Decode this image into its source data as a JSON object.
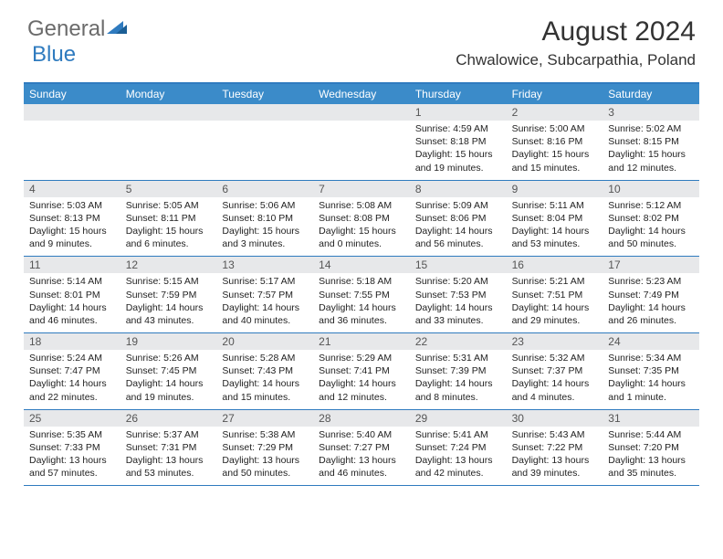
{
  "logo": {
    "general": "General",
    "blue": "Blue"
  },
  "title": "August 2024",
  "location": "Chwalowice, Subcarpathia, Poland",
  "colors": {
    "header_bg": "#3b8bc9",
    "border": "#2f7bbf",
    "daynum_bg": "#e7e8ea",
    "text": "#222222",
    "logo_gray": "#6b6b6b",
    "logo_blue": "#2f7bbf"
  },
  "day_headers": [
    "Sunday",
    "Monday",
    "Tuesday",
    "Wednesday",
    "Thursday",
    "Friday",
    "Saturday"
  ],
  "weeks": [
    [
      {
        "n": "",
        "lines": []
      },
      {
        "n": "",
        "lines": []
      },
      {
        "n": "",
        "lines": []
      },
      {
        "n": "",
        "lines": []
      },
      {
        "n": "1",
        "lines": [
          "Sunrise: 4:59 AM",
          "Sunset: 8:18 PM",
          "Daylight: 15 hours and 19 minutes."
        ]
      },
      {
        "n": "2",
        "lines": [
          "Sunrise: 5:00 AM",
          "Sunset: 8:16 PM",
          "Daylight: 15 hours and 15 minutes."
        ]
      },
      {
        "n": "3",
        "lines": [
          "Sunrise: 5:02 AM",
          "Sunset: 8:15 PM",
          "Daylight: 15 hours and 12 minutes."
        ]
      }
    ],
    [
      {
        "n": "4",
        "lines": [
          "Sunrise: 5:03 AM",
          "Sunset: 8:13 PM",
          "Daylight: 15 hours and 9 minutes."
        ]
      },
      {
        "n": "5",
        "lines": [
          "Sunrise: 5:05 AM",
          "Sunset: 8:11 PM",
          "Daylight: 15 hours and 6 minutes."
        ]
      },
      {
        "n": "6",
        "lines": [
          "Sunrise: 5:06 AM",
          "Sunset: 8:10 PM",
          "Daylight: 15 hours and 3 minutes."
        ]
      },
      {
        "n": "7",
        "lines": [
          "Sunrise: 5:08 AM",
          "Sunset: 8:08 PM",
          "Daylight: 15 hours and 0 minutes."
        ]
      },
      {
        "n": "8",
        "lines": [
          "Sunrise: 5:09 AM",
          "Sunset: 8:06 PM",
          "Daylight: 14 hours and 56 minutes."
        ]
      },
      {
        "n": "9",
        "lines": [
          "Sunrise: 5:11 AM",
          "Sunset: 8:04 PM",
          "Daylight: 14 hours and 53 minutes."
        ]
      },
      {
        "n": "10",
        "lines": [
          "Sunrise: 5:12 AM",
          "Sunset: 8:02 PM",
          "Daylight: 14 hours and 50 minutes."
        ]
      }
    ],
    [
      {
        "n": "11",
        "lines": [
          "Sunrise: 5:14 AM",
          "Sunset: 8:01 PM",
          "Daylight: 14 hours and 46 minutes."
        ]
      },
      {
        "n": "12",
        "lines": [
          "Sunrise: 5:15 AM",
          "Sunset: 7:59 PM",
          "Daylight: 14 hours and 43 minutes."
        ]
      },
      {
        "n": "13",
        "lines": [
          "Sunrise: 5:17 AM",
          "Sunset: 7:57 PM",
          "Daylight: 14 hours and 40 minutes."
        ]
      },
      {
        "n": "14",
        "lines": [
          "Sunrise: 5:18 AM",
          "Sunset: 7:55 PM",
          "Daylight: 14 hours and 36 minutes."
        ]
      },
      {
        "n": "15",
        "lines": [
          "Sunrise: 5:20 AM",
          "Sunset: 7:53 PM",
          "Daylight: 14 hours and 33 minutes."
        ]
      },
      {
        "n": "16",
        "lines": [
          "Sunrise: 5:21 AM",
          "Sunset: 7:51 PM",
          "Daylight: 14 hours and 29 minutes."
        ]
      },
      {
        "n": "17",
        "lines": [
          "Sunrise: 5:23 AM",
          "Sunset: 7:49 PM",
          "Daylight: 14 hours and 26 minutes."
        ]
      }
    ],
    [
      {
        "n": "18",
        "lines": [
          "Sunrise: 5:24 AM",
          "Sunset: 7:47 PM",
          "Daylight: 14 hours and 22 minutes."
        ]
      },
      {
        "n": "19",
        "lines": [
          "Sunrise: 5:26 AM",
          "Sunset: 7:45 PM",
          "Daylight: 14 hours and 19 minutes."
        ]
      },
      {
        "n": "20",
        "lines": [
          "Sunrise: 5:28 AM",
          "Sunset: 7:43 PM",
          "Daylight: 14 hours and 15 minutes."
        ]
      },
      {
        "n": "21",
        "lines": [
          "Sunrise: 5:29 AM",
          "Sunset: 7:41 PM",
          "Daylight: 14 hours and 12 minutes."
        ]
      },
      {
        "n": "22",
        "lines": [
          "Sunrise: 5:31 AM",
          "Sunset: 7:39 PM",
          "Daylight: 14 hours and 8 minutes."
        ]
      },
      {
        "n": "23",
        "lines": [
          "Sunrise: 5:32 AM",
          "Sunset: 7:37 PM",
          "Daylight: 14 hours and 4 minutes."
        ]
      },
      {
        "n": "24",
        "lines": [
          "Sunrise: 5:34 AM",
          "Sunset: 7:35 PM",
          "Daylight: 14 hours and 1 minute."
        ]
      }
    ],
    [
      {
        "n": "25",
        "lines": [
          "Sunrise: 5:35 AM",
          "Sunset: 7:33 PM",
          "Daylight: 13 hours and 57 minutes."
        ]
      },
      {
        "n": "26",
        "lines": [
          "Sunrise: 5:37 AM",
          "Sunset: 7:31 PM",
          "Daylight: 13 hours and 53 minutes."
        ]
      },
      {
        "n": "27",
        "lines": [
          "Sunrise: 5:38 AM",
          "Sunset: 7:29 PM",
          "Daylight: 13 hours and 50 minutes."
        ]
      },
      {
        "n": "28",
        "lines": [
          "Sunrise: 5:40 AM",
          "Sunset: 7:27 PM",
          "Daylight: 13 hours and 46 minutes."
        ]
      },
      {
        "n": "29",
        "lines": [
          "Sunrise: 5:41 AM",
          "Sunset: 7:24 PM",
          "Daylight: 13 hours and 42 minutes."
        ]
      },
      {
        "n": "30",
        "lines": [
          "Sunrise: 5:43 AM",
          "Sunset: 7:22 PM",
          "Daylight: 13 hours and 39 minutes."
        ]
      },
      {
        "n": "31",
        "lines": [
          "Sunrise: 5:44 AM",
          "Sunset: 7:20 PM",
          "Daylight: 13 hours and 35 minutes."
        ]
      }
    ]
  ]
}
